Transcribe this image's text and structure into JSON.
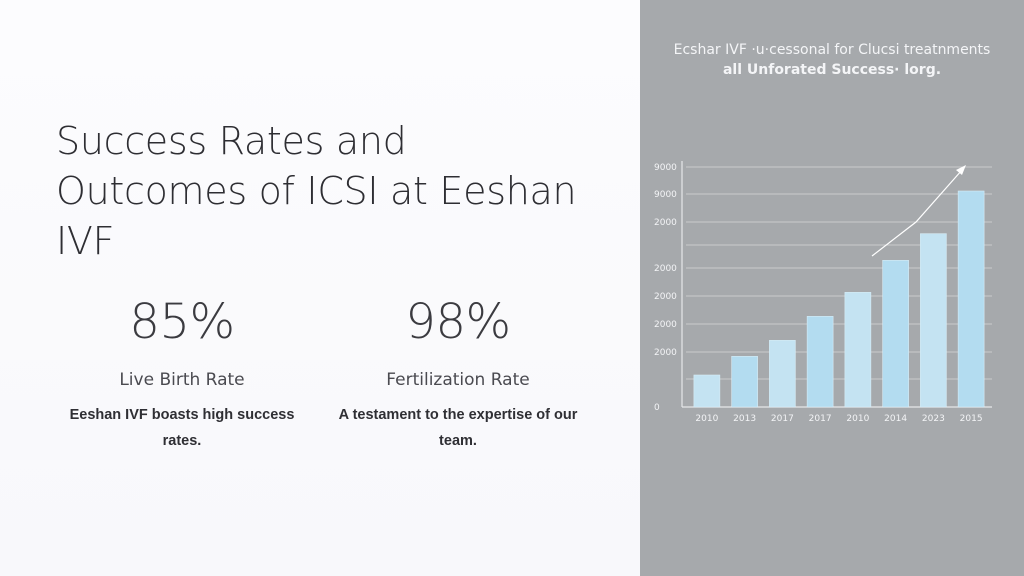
{
  "slide": {
    "title": "Success Rates and Outcomes of ICSI at Eeshan IVF"
  },
  "stats": [
    {
      "value": "85%",
      "label": "Live Birth Rate",
      "description": "Eeshan IVF boasts high success rates."
    },
    {
      "value": "98%",
      "label": "Fertilization Rate",
      "description": "A testament to the expertise of our team."
    }
  ],
  "chart_heading": {
    "line1": "Ecshar IVF ·u·cessonal for Clucsi treatnments",
    "line2": "all Unforated Success· lorg."
  },
  "colors": {
    "panel": "#a6a9ac",
    "bar": "#bcdff0",
    "text_dark": "#2e2e33"
  },
  "chart_data": {
    "type": "bar",
    "title": "Ecshar IVF ·u·cessonal for Clucsi treatnments all Unforated Success· lorg.",
    "categories": [
      "2010",
      "2013",
      "2017",
      "2017",
      "2010",
      "2014",
      "2023",
      "2015"
    ],
    "values": [
      12,
      19,
      25,
      34,
      43,
      55,
      65,
      81
    ],
    "ytick_labels": [
      "0",
      "2000",
      "2000",
      "2000",
      "2000",
      "2000",
      "9000",
      "9000"
    ],
    "ylim": [
      0,
      90
    ],
    "grid": true,
    "trend_arrow": true,
    "xlabel": "",
    "ylabel": ""
  }
}
